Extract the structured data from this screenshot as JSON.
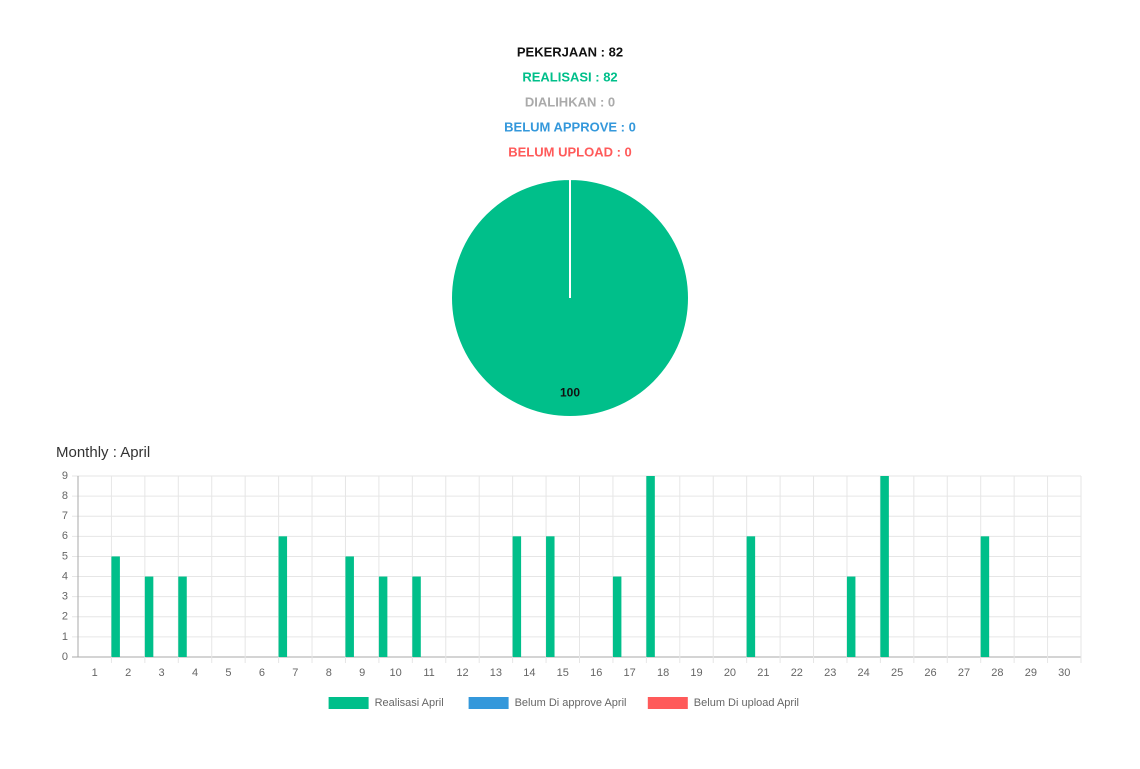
{
  "summary": [
    {
      "text": "PEKERJAAN : 82",
      "color": "#111111"
    },
    {
      "text": "REALISASI : 82",
      "color": "#00bf8a"
    },
    {
      "text": "DIALIHKAN : 0",
      "color": "#aaaaaa"
    },
    {
      "text": "BELUM APPROVE : 0",
      "color": "#3498db"
    },
    {
      "text": "BELUM UPLOAD : 0",
      "color": "#ff5a5a"
    }
  ],
  "chart_data": [
    {
      "type": "pie",
      "values": [
        100
      ],
      "colors": [
        "#00bf8a"
      ]
    },
    {
      "type": "bar",
      "title": "Monthly : April",
      "categories": [
        "1",
        "2",
        "3",
        "4",
        "5",
        "6",
        "7",
        "8",
        "9",
        "10",
        "11",
        "12",
        "13",
        "14",
        "15",
        "16",
        "17",
        "18",
        "19",
        "20",
        "21",
        "22",
        "23",
        "24",
        "25",
        "26",
        "27",
        "28",
        "29",
        "30"
      ],
      "series": [
        {
          "name": "Realisasi April",
          "color": "#00bf8a",
          "values": [
            0,
            5,
            4,
            4,
            0,
            0,
            6,
            0,
            5,
            4,
            4,
            0,
            0,
            6,
            6,
            0,
            4,
            9,
            0,
            0,
            6,
            0,
            0,
            4,
            9,
            0,
            0,
            6,
            0,
            0
          ]
        },
        {
          "name": "Belum Di approve April",
          "color": "#3498db",
          "values": [
            0,
            0,
            0,
            0,
            0,
            0,
            0,
            0,
            0,
            0,
            0,
            0,
            0,
            0,
            0,
            0,
            0,
            0,
            0,
            0,
            0,
            0,
            0,
            0,
            0,
            0,
            0,
            0,
            0,
            0
          ]
        },
        {
          "name": "Belum Di upload April",
          "color": "#ff5a5a",
          "values": [
            0,
            0,
            0,
            0,
            0,
            0,
            0,
            0,
            0,
            0,
            0,
            0,
            0,
            0,
            0,
            0,
            0,
            0,
            0,
            0,
            0,
            0,
            0,
            0,
            0,
            0,
            0,
            0,
            0,
            0
          ]
        }
      ],
      "ylim": [
        0,
        9
      ],
      "yticks": [
        0,
        1,
        2,
        3,
        4,
        5,
        6,
        7,
        8,
        9
      ],
      "grid": true,
      "legend": "bottom"
    }
  ]
}
